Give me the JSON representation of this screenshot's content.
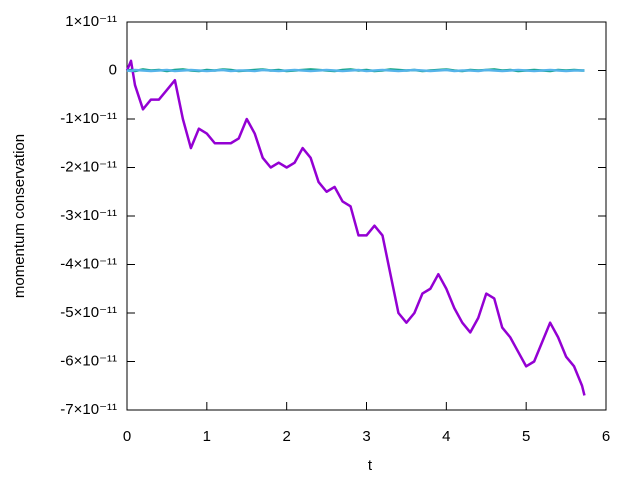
{
  "chart_data": {
    "type": "line",
    "x_label": "t",
    "y_label": "momentum conservation",
    "xlim": [
      0,
      6
    ],
    "xticks": [
      0,
      1,
      2,
      3,
      4,
      5,
      6
    ],
    "ylim": [
      -7e-11,
      1e-11
    ],
    "yticks": [
      {
        "value": -7e-11,
        "label": "-7×10⁻¹¹"
      },
      {
        "value": -6e-11,
        "label": "-6×10⁻¹¹"
      },
      {
        "value": -5e-11,
        "label": "-5×10⁻¹¹"
      },
      {
        "value": -4e-11,
        "label": "-4×10⁻¹¹"
      },
      {
        "value": -3e-11,
        "label": "-3×10⁻¹¹"
      },
      {
        "value": -2e-11,
        "label": "-2×10⁻¹¹"
      },
      {
        "value": -1e-11,
        "label": "-1×10⁻¹¹"
      },
      0,
      {
        "value": 1e-11,
        "label": "1×10⁻¹¹"
      }
    ],
    "x": [
      0,
      0.05,
      0.1,
      0.2,
      0.3,
      0.4,
      0.5,
      0.6,
      0.7,
      0.8,
      0.9,
      1.0,
      1.1,
      1.2,
      1.3,
      1.4,
      1.5,
      1.6,
      1.7,
      1.8,
      1.9,
      2.0,
      2.1,
      2.2,
      2.3,
      2.4,
      2.5,
      2.6,
      2.7,
      2.8,
      2.9,
      3.0,
      3.1,
      3.2,
      3.3,
      3.4,
      3.5,
      3.6,
      3.7,
      3.8,
      3.9,
      4.0,
      4.1,
      4.2,
      4.3,
      4.4,
      4.5,
      4.6,
      4.7,
      4.8,
      4.9,
      5.0,
      5.1,
      5.2,
      5.3,
      5.4,
      5.5,
      5.6,
      5.7,
      5.73
    ],
    "series": [
      {
        "color": "#9400d3",
        "values": [
          0,
          2e-12,
          -3e-12,
          -8e-12,
          -6e-12,
          -6e-12,
          -4e-12,
          -2e-12,
          -1e-11,
          -1.6e-11,
          -1.2e-11,
          -1.3e-11,
          -1.5e-11,
          -1.5e-11,
          -1.5e-11,
          -1.4e-11,
          -1e-11,
          -1.3e-11,
          -1.8e-11,
          -2e-11,
          -1.9e-11,
          -2e-11,
          -1.9e-11,
          -1.6e-11,
          -1.8e-11,
          -2.3e-11,
          -2.5e-11,
          -2.4e-11,
          -2.7e-11,
          -2.8e-11,
          -3.4e-11,
          -3.4e-11,
          -3.2e-11,
          -3.4e-11,
          -4.2e-11,
          -5e-11,
          -5.2e-11,
          -5e-11,
          -4.6e-11,
          -4.5e-11,
          -4.2e-11,
          -4.5e-11,
          -4.9e-11,
          -5.2e-11,
          -5.4e-11,
          -5.1e-11,
          -4.6e-11,
          -4.7e-11,
          -5.3e-11,
          -5.5e-11,
          -5.8e-11,
          -6.1e-11,
          -6e-11,
          -5.6e-11,
          -5.2e-11,
          -5.5e-11,
          -5.9e-11,
          -6.1e-11,
          -6.5e-11,
          -6.7e-11
        ]
      },
      {
        "color": "#009e73",
        "values": [
          0,
          1e-13,
          -1e-13,
          2e-13,
          0,
          1e-13,
          -1e-13,
          1e-13,
          2e-13,
          0,
          -1e-13,
          1e-13,
          0,
          2e-13,
          1e-13,
          -1e-13,
          0,
          1e-13,
          2e-13,
          0,
          1e-13,
          -1e-13,
          0,
          1e-13,
          2e-13,
          1e-13,
          0,
          -1e-13,
          1e-13,
          2e-13,
          0,
          1e-13,
          -1e-13,
          0,
          2e-13,
          1e-13,
          0,
          1e-13,
          -1e-13,
          0,
          1e-13,
          2e-13,
          0,
          -1e-13,
          1e-13,
          0,
          1e-13,
          2e-13,
          0,
          1e-13,
          -1e-13,
          0,
          1e-13,
          0,
          -1e-13,
          1e-13,
          0,
          1e-13,
          0,
          0
        ]
      },
      {
        "color": "#56b4e9",
        "values": [
          0,
          -1e-13,
          1e-13,
          0,
          -1e-13,
          0,
          1e-13,
          -1e-13,
          0,
          1e-13,
          0,
          -1e-13,
          0,
          1e-13,
          -1e-13,
          0,
          0,
          -1e-13,
          1e-13,
          0,
          -1e-13,
          0,
          1e-13,
          0,
          -1e-13,
          0,
          1e-13,
          0,
          -1e-13,
          0,
          1e-13,
          -1e-13,
          0,
          1e-13,
          0,
          -1e-13,
          0,
          1e-13,
          0,
          -1e-13,
          0,
          1e-13,
          -1e-13,
          0,
          0,
          -1e-13,
          1e-13,
          0,
          -1e-13,
          0,
          1e-13,
          0,
          -1e-13,
          0,
          1e-13,
          0,
          -1e-13,
          0,
          0,
          0
        ]
      }
    ]
  }
}
